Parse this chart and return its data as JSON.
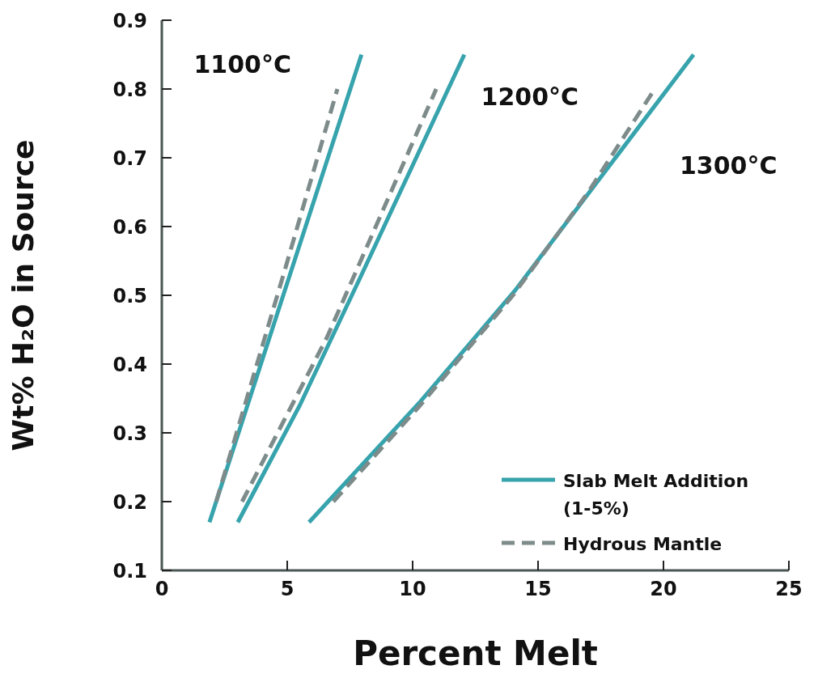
{
  "chart_data": {
    "type": "line",
    "xlabel": "Percent Melt",
    "ylabel": "Wt% H₂O in Source",
    "xlim": [
      0,
      25
    ],
    "xticks": [
      0,
      5,
      10,
      15,
      20,
      25
    ],
    "ylim": [
      0.1,
      0.9
    ],
    "yticks": [
      0.1,
      0.2,
      0.3,
      0.4,
      0.5,
      0.6,
      0.7,
      0.8,
      0.9
    ],
    "grid": false,
    "legend": "bottom right",
    "marker": "none",
    "series": [
      {
        "name": "Slab Melt Addition (1-5%)",
        "color": "#36a3ad",
        "line_style": "solid",
        "x": [
          1.9,
          7.96
        ],
        "values": [
          0.17,
          0.85
        ]
      },
      {
        "name": "Hydrous Mantle",
        "color": "#7d8b8a",
        "line_style": "dashed",
        "x": [
          2.17,
          4.93,
          7.0
        ],
        "values": [
          0.2,
          0.54,
          0.8
        ]
      },
      {
        "color": "#36a3ad",
        "line_style": "solid",
        "x": [
          3.03,
          5.5,
          7.9,
          12.06
        ],
        "values": [
          0.17,
          0.34,
          0.525,
          0.85
        ]
      },
      {
        "color": "#7d8b8a",
        "line_style": "dashed",
        "x": [
          3.2,
          6.6,
          10.94
        ],
        "values": [
          0.2,
          0.44,
          0.8
        ]
      },
      {
        "color": "#36a3ad",
        "line_style": "solid",
        "x": [
          5.87,
          10.32,
          14.06,
          21.2
        ],
        "values": [
          0.17,
          0.346,
          0.506,
          0.85
        ]
      },
      {
        "color": "#7d8b8a",
        "line_style": "dashed",
        "x": [
          6.84,
          10.3,
          14.0,
          17.0,
          19.65
        ],
        "values": [
          0.2,
          0.34,
          0.5,
          0.65,
          0.8
        ]
      }
    ],
    "annotations": [
      "1100°C",
      "1200°C",
      "1300°C"
    ]
  }
}
